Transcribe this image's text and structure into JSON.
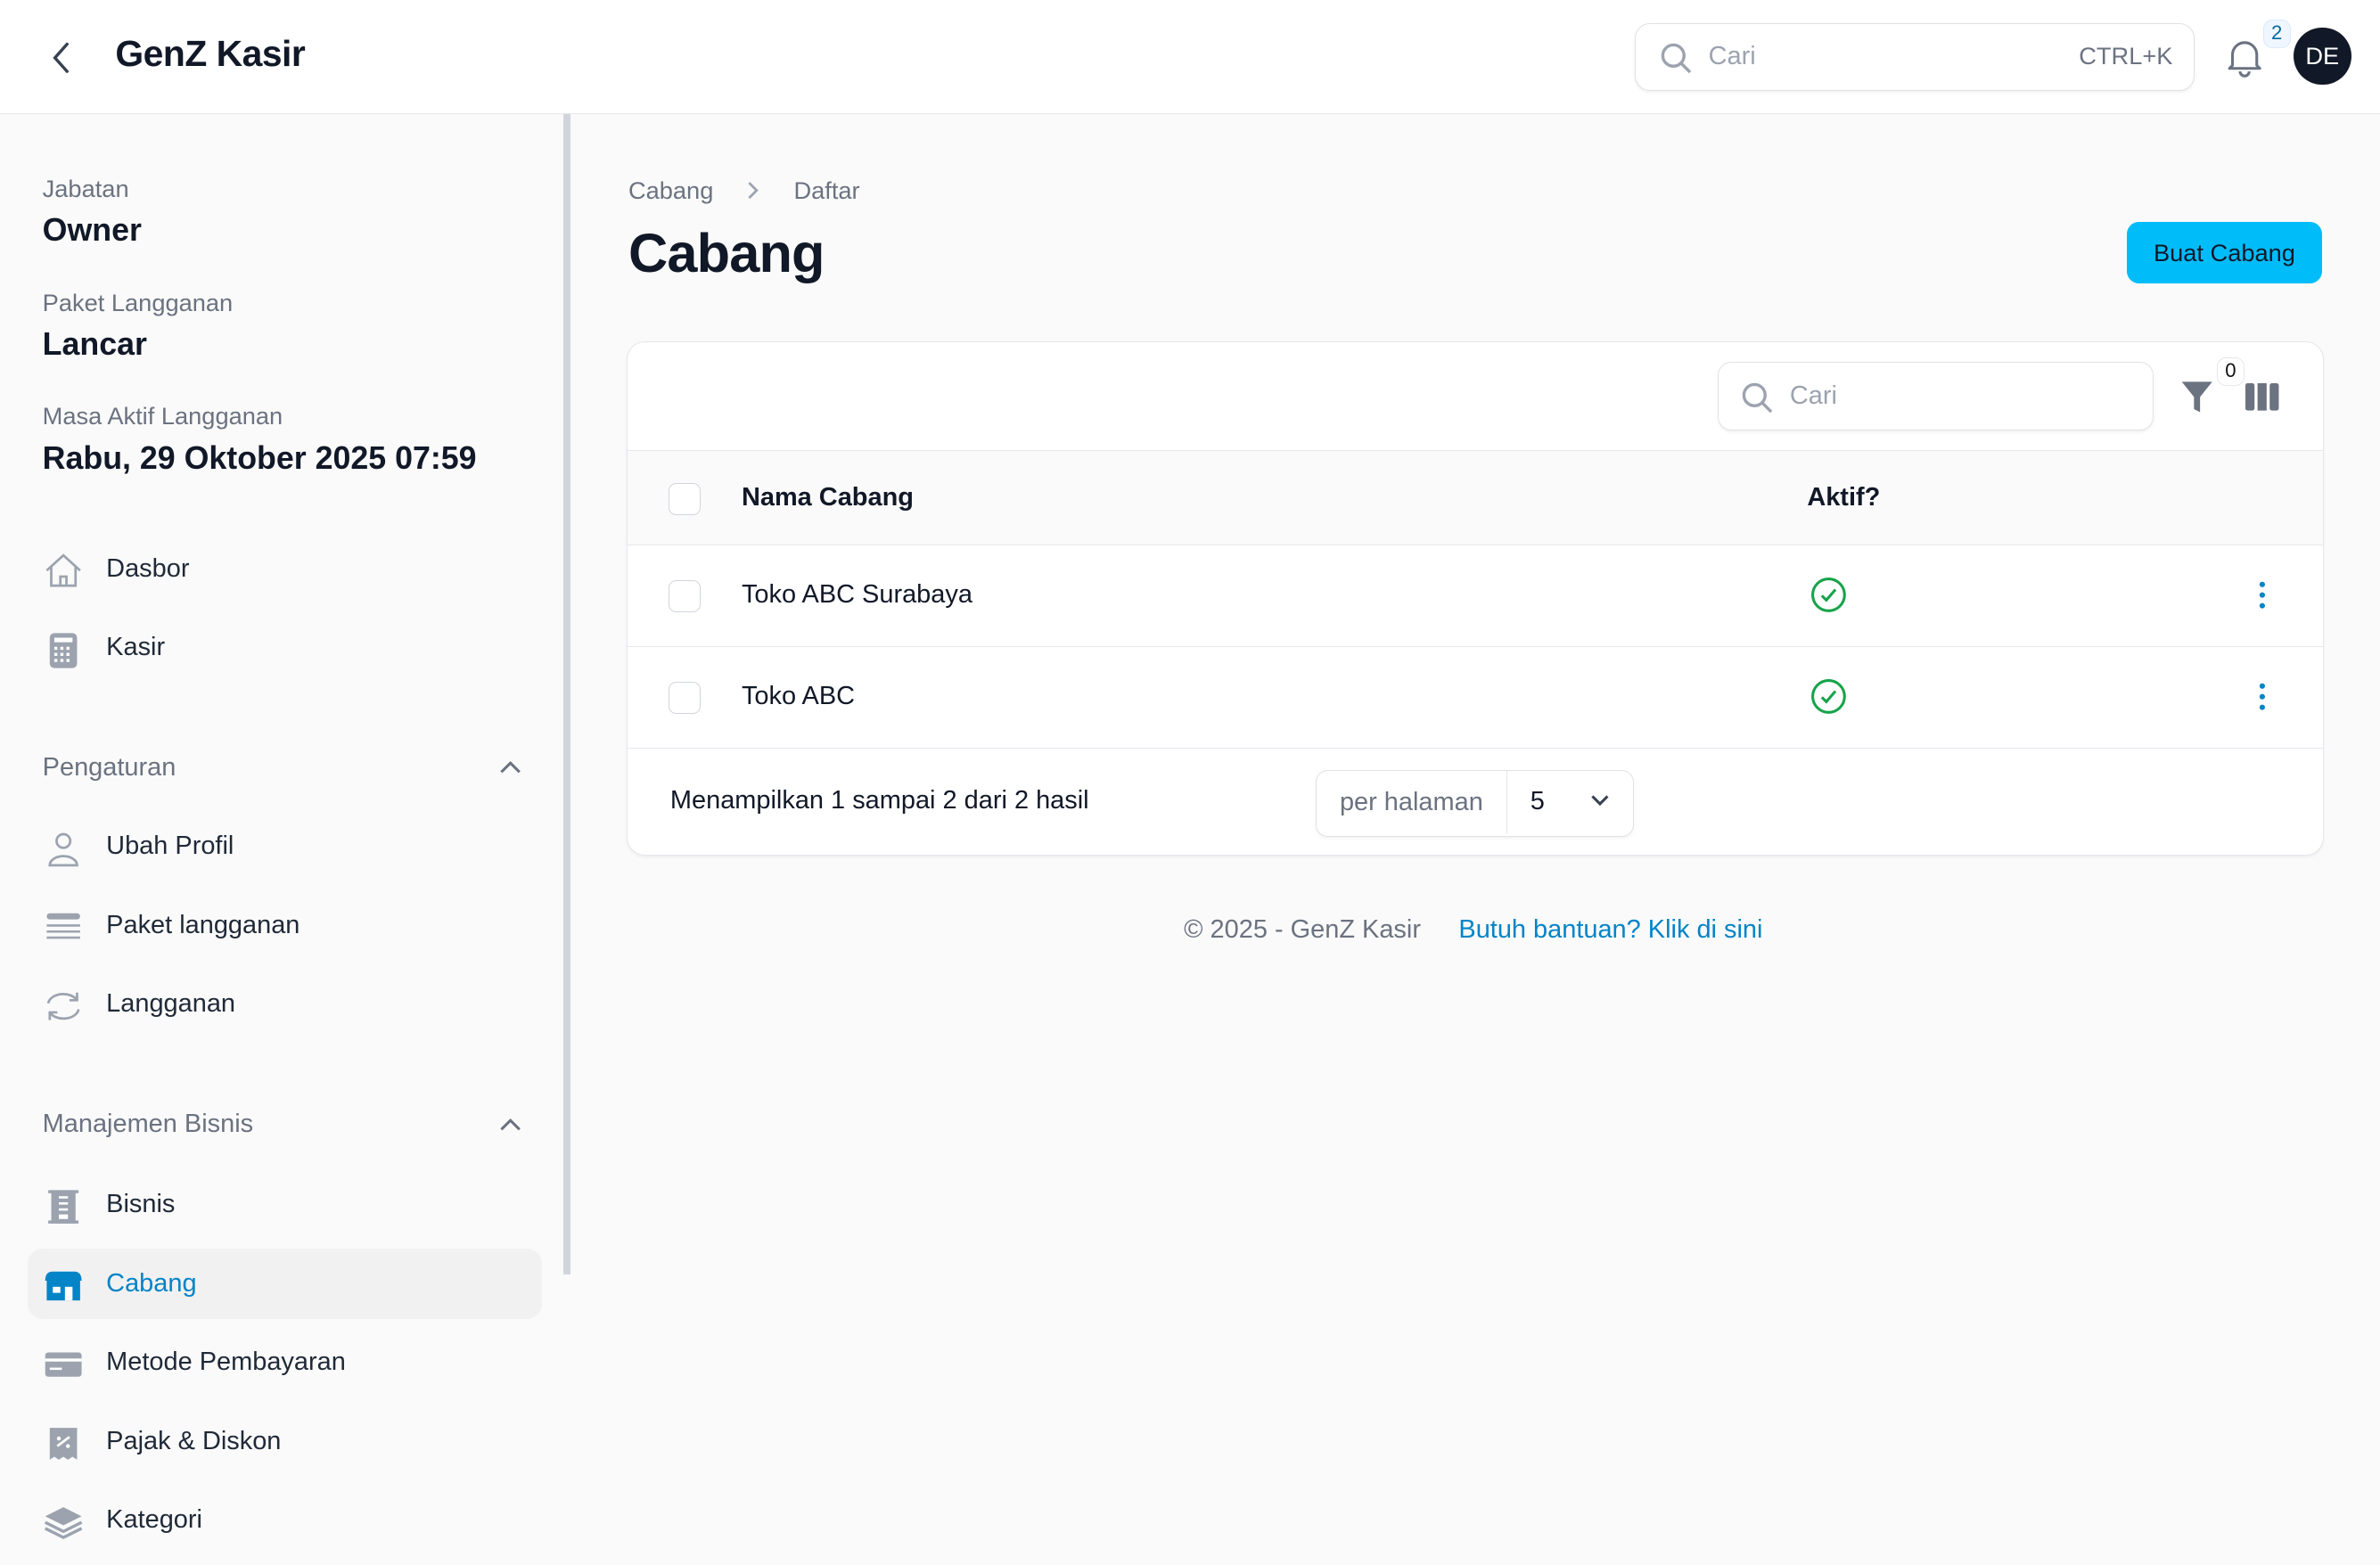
{
  "header": {
    "title": "GenZ Kasir",
    "search_placeholder": "Cari",
    "search_shortcut": "CTRL+K",
    "notification_count": "2",
    "avatar_initials": "DE"
  },
  "sidebar": {
    "info": [
      {
        "label": "Jabatan",
        "value": "Owner"
      },
      {
        "label": "Paket Langganan",
        "value": "Lancar"
      },
      {
        "label": "Masa Aktif Langganan",
        "value": "Rabu, 29 Oktober 2025 07:59"
      }
    ],
    "main_items": [
      {
        "label": "Dasbor",
        "icon": "home-icon"
      },
      {
        "label": "Kasir",
        "icon": "calculator-icon"
      }
    ],
    "groups": [
      {
        "label": "Pengaturan",
        "expanded": true,
        "items": [
          {
            "label": "Ubah Profil",
            "icon": "user-icon"
          },
          {
            "label": "Paket langganan",
            "icon": "list-icon"
          },
          {
            "label": "Langganan",
            "icon": "refresh-icon"
          }
        ]
      },
      {
        "label": "Manajemen Bisnis",
        "expanded": true,
        "items": [
          {
            "label": "Bisnis",
            "icon": "building-icon"
          },
          {
            "label": "Cabang",
            "icon": "store-icon",
            "active": true
          },
          {
            "label": "Metode Pembayaran",
            "icon": "credit-card-icon"
          },
          {
            "label": "Pajak & Diskon",
            "icon": "receipt-percent-icon"
          },
          {
            "label": "Kategori",
            "icon": "layers-icon"
          }
        ]
      }
    ]
  },
  "main": {
    "breadcrumb": [
      "Cabang",
      "Daftar"
    ],
    "title": "Cabang",
    "create_button": "Buat Cabang",
    "table": {
      "search_placeholder": "Cari",
      "filter_count": "0",
      "columns": [
        "Nama Cabang",
        "Aktif?"
      ],
      "rows": [
        {
          "name": "Toko ABC Surabaya",
          "active": true
        },
        {
          "name": "Toko ABC",
          "active": true
        }
      ],
      "summary": "Menampilkan 1 sampai 2 dari 2 hasil",
      "per_page_label": "per halaman",
      "per_page_value": "5"
    }
  },
  "footer": {
    "copyright": "© 2025 - GenZ Kasir",
    "help_link": "Butuh bantuan? Klik di sini"
  },
  "colors": {
    "accent": "#00bcf9",
    "link": "#0284c7",
    "success": "#16a34a"
  }
}
